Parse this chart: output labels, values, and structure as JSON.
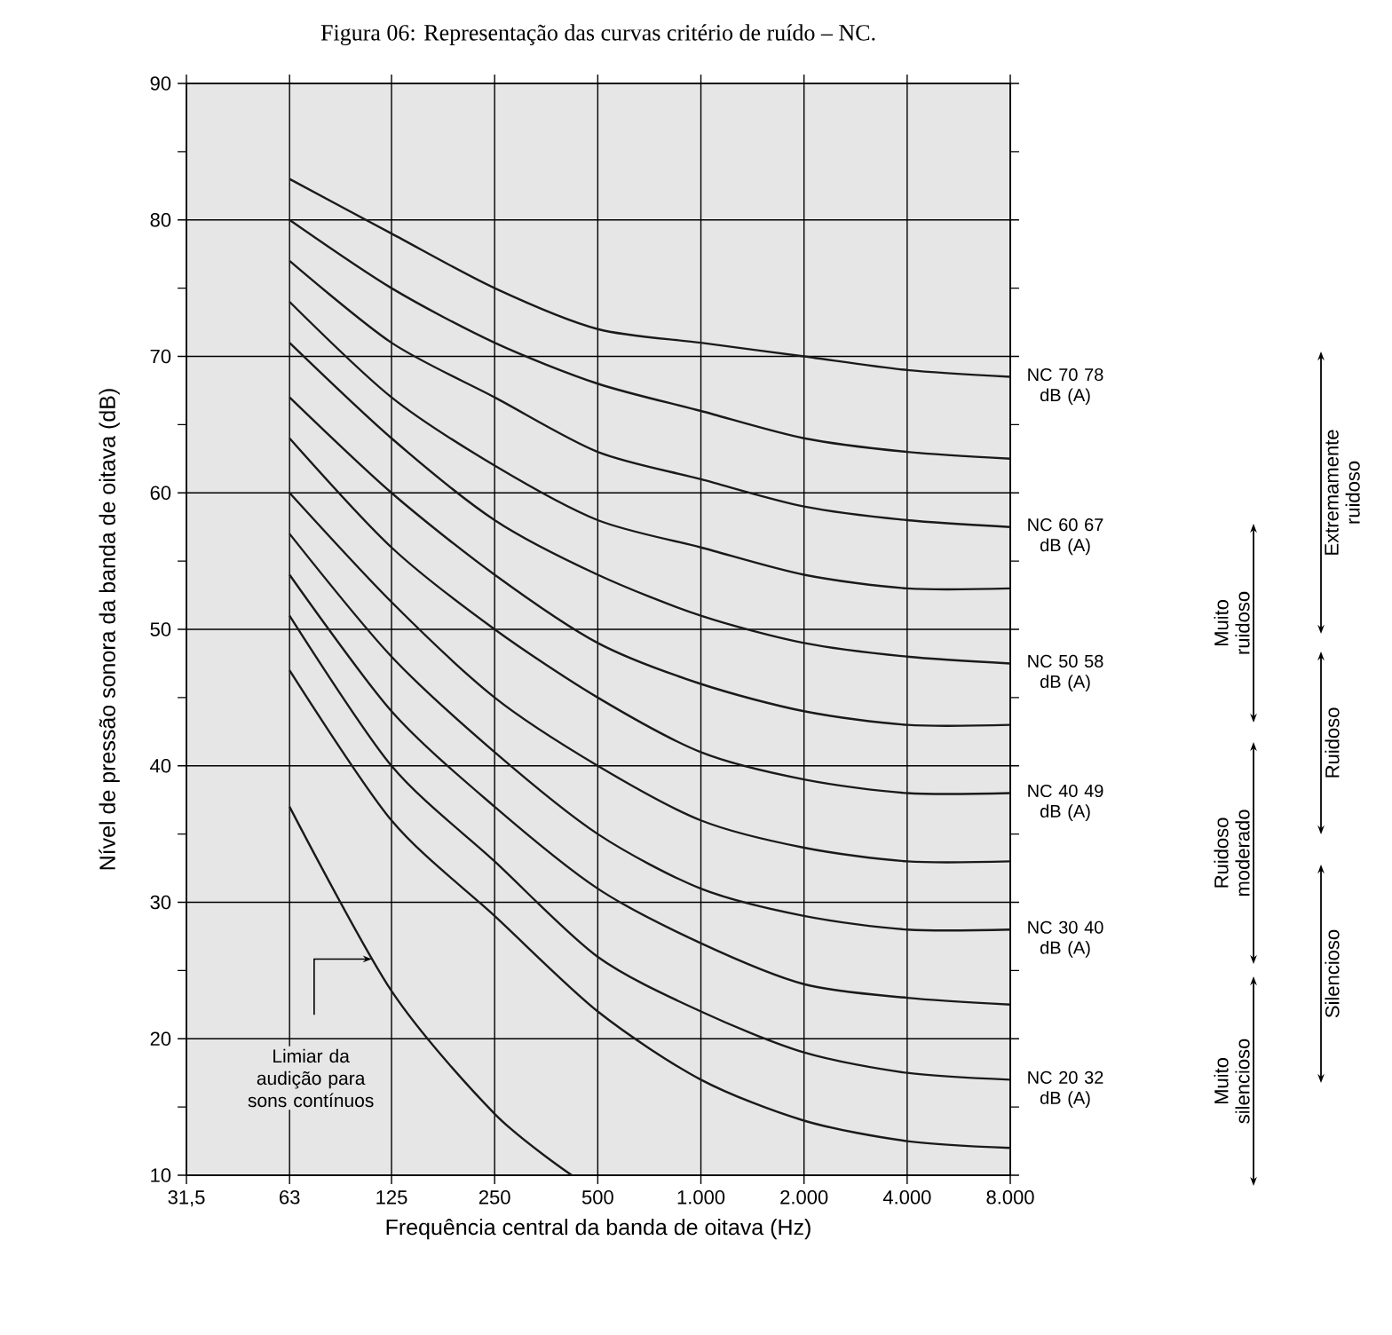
{
  "chart_data": {
    "type": "line",
    "title": "Figura 06: Representação das curvas critério de ruído – NC.",
    "xlabel": "Frequência central da banda de oitava (Hz)",
    "ylabel": "Nível de pressão sonora da banda de oitava (dB)",
    "log": "x",
    "grid": true,
    "x": [
      63,
      125,
      250,
      500,
      1000,
      2000,
      4000,
      8000
    ],
    "xlim": [
      31.5,
      8000
    ],
    "ylim": [
      10,
      90
    ],
    "xticks": [
      {
        "value": 31.5,
        "label": "31,5"
      },
      63,
      125,
      250,
      500,
      {
        "value": 1000,
        "label": "1.000"
      },
      {
        "value": 2000,
        "label": "2.000"
      },
      {
        "value": 4000,
        "label": "4.000"
      },
      {
        "value": 8000,
        "label": "8.000"
      }
    ],
    "yticks": [
      10,
      {
        "value": 15,
        "label": null
      },
      20,
      {
        "value": 25,
        "label": null
      },
      30,
      {
        "value": 35,
        "label": null
      },
      40,
      {
        "value": 45,
        "label": null
      },
      50,
      {
        "value": 55,
        "label": null
      },
      60,
      {
        "value": 65,
        "label": null
      },
      70,
      {
        "value": 75,
        "label": null
      },
      80,
      {
        "value": 85,
        "label": null
      },
      90
    ],
    "series": [
      {
        "name": "NC 70 78 dB (A)",
        "color": "#1a1a1a",
        "values": [
          83,
          79,
          75,
          72,
          71,
          70,
          69,
          68.5
        ]
      },
      {
        "color": "#1a1a1a",
        "values": [
          80,
          75,
          71,
          68,
          66,
          64,
          63,
          62.5
        ]
      },
      {
        "name": "NC 60 67 dB (A)",
        "color": "#1a1a1a",
        "values": [
          77,
          71,
          67,
          63,
          61,
          59,
          58,
          57.5
        ]
      },
      {
        "color": "#1a1a1a",
        "values": [
          74,
          67,
          62,
          58,
          56,
          54,
          53,
          53
        ]
      },
      {
        "name": "NC 50 58 dB (A)",
        "color": "#1a1a1a",
        "values": [
          71,
          64,
          58,
          54,
          51,
          49,
          48,
          47.5
        ]
      },
      {
        "color": "#1a1a1a",
        "values": [
          67,
          60,
          54,
          49,
          46,
          44,
          43,
          43
        ]
      },
      {
        "name": "NC 40 49 dB (A)",
        "color": "#1a1a1a",
        "values": [
          64,
          56,
          50,
          45,
          41,
          39,
          38,
          38
        ]
      },
      {
        "color": "#1a1a1a",
        "values": [
          60,
          52,
          45,
          40,
          36,
          34,
          33,
          33
        ]
      },
      {
        "name": "NC 30 40 dB (A)",
        "color": "#1a1a1a",
        "values": [
          57,
          48,
          41,
          35,
          31,
          29,
          28,
          28
        ]
      },
      {
        "color": "#1a1a1a",
        "values": [
          54,
          44,
          37,
          31,
          27,
          24,
          23,
          22.5
        ]
      },
      {
        "name": "NC 20 32 dB (A)",
        "color": "#1a1a1a",
        "values": [
          51,
          40,
          33,
          26,
          22,
          19,
          17.5,
          17
        ]
      },
      {
        "color": "#1a1a1a",
        "values": [
          47,
          36,
          29,
          22,
          17,
          14,
          12.5,
          12
        ]
      },
      {
        "color": "#1a1a1a",
        "x": [
          63,
          125,
          250,
          420
        ],
        "values": [
          37,
          23.5,
          14.5,
          10
        ]
      }
    ],
    "annotations": [
      "Limiar da audição para sons contínuos",
      "Muito ruidoso",
      "Ruidoso moderado",
      "Muito silencioso",
      "Extremamente ruidoso",
      "Ruidoso",
      "Silencioso"
    ]
  }
}
